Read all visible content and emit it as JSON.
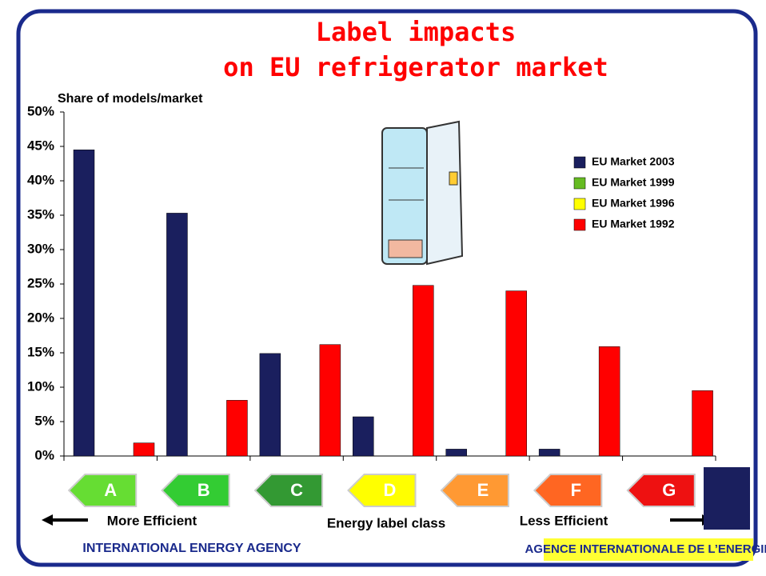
{
  "chart_data": {
    "type": "bar",
    "title": [
      "Label impacts",
      "on EU refrigerator market"
    ],
    "y_label": "Share of models/market",
    "x_label": "Energy label class",
    "annotations": [
      "More Efficient",
      "Less Efficient"
    ],
    "footer": [
      "INTERNATIONAL ENERGY AGENCY",
      "AGENCE INTERNATIONALE DE L’ENERGIE"
    ],
    "categories": [
      "A",
      "B",
      "C",
      "D",
      "E",
      "F",
      "G"
    ],
    "category_colors": [
      "#66dd33",
      "#33cc33",
      "#339933",
      "#ffff00",
      "#ff9933",
      "#ff6622",
      "#ee1111"
    ],
    "series": [
      {
        "name": "EU Market 2003",
        "color": "#1a1f5e",
        "values": [
          44.5,
          35.3,
          14.9,
          5.7,
          1.0,
          1.0,
          0
        ]
      },
      {
        "name": "EU Market 1999",
        "color": "#66bb22",
        "values": [
          0,
          0,
          0,
          0,
          0,
          0,
          0
        ]
      },
      {
        "name": "EU Market 1996",
        "color": "#ffff00",
        "values": [
          0,
          0,
          0,
          0,
          0,
          0,
          0
        ]
      },
      {
        "name": "EU Market 1992",
        "color": "#ff0000",
        "values": [
          1.9,
          8.1,
          16.2,
          24.8,
          24.0,
          15.9,
          9.5
        ]
      }
    ],
    "ylim": [
      0,
      50
    ],
    "yticks": [
      {
        "value": 0,
        "label": "0%"
      },
      {
        "value": 5,
        "label": "5%"
      },
      {
        "value": 10,
        "label": "10%"
      },
      {
        "value": 15,
        "label": "15%"
      },
      {
        "value": 20,
        "label": "20%"
      },
      {
        "value": 25,
        "label": "25%"
      },
      {
        "value": 30,
        "label": "30%"
      },
      {
        "value": 35,
        "label": "35%"
      },
      {
        "value": 40,
        "label": "40%"
      },
      {
        "value": 45,
        "label": "45%"
      },
      {
        "value": 50,
        "label": "50%"
      }
    ],
    "grid": false,
    "legend": "upper right"
  }
}
